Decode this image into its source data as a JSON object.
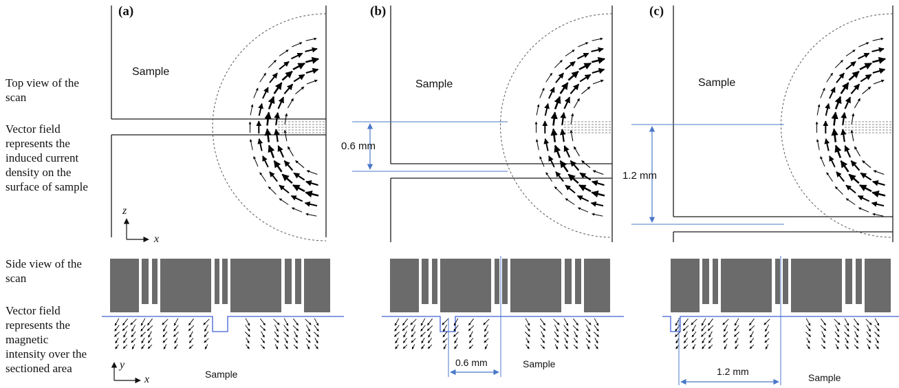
{
  "labels": {
    "top_view": "Top view of the\nscan",
    "vector_field_top": "Vector field\nrepresents the\ninduced current\ndensity on the\nsurface of sample",
    "side_view": "Side view of the\nscan",
    "vector_field_side": "Vector field\nrepresents the\nmagnetic\nintensity over the\nsectioned area"
  },
  "panels": [
    {
      "tag": "(a)",
      "sample_top": "Sample",
      "sample_side": "Sample"
    },
    {
      "tag": "(b)",
      "sample_top": "Sample",
      "sample_side": "Sample",
      "gap_top": "0.6 mm",
      "gap_side": "0.6 mm"
    },
    {
      "tag": "(c)",
      "sample_top": "Sample",
      "sample_side": "Sample",
      "gap_top": "1.2 mm",
      "gap_side": "1.2 mm"
    }
  ],
  "axes": {
    "top_vertical": "z",
    "top_horizontal": "x",
    "side_vertical": "y",
    "side_horizontal": "x"
  },
  "colors": {
    "outline": "#1a1a1a",
    "probe": "#6b6b6b",
    "dimension": "#4a78c8",
    "surface": "#3f5fd8",
    "arrow": "#000000"
  }
}
